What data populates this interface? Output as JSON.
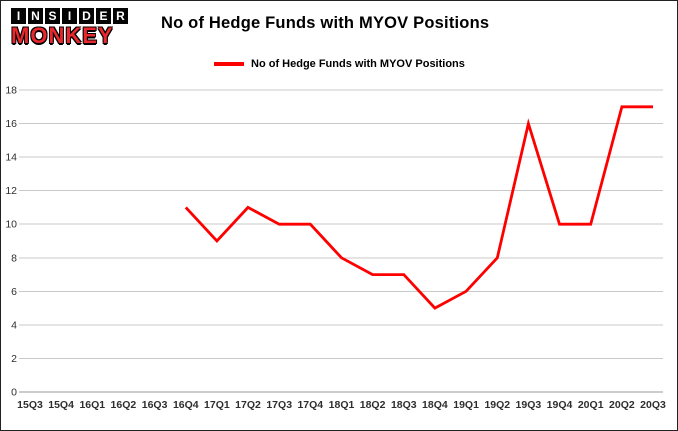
{
  "logo": {
    "line1": "INSIDER",
    "line2": "MONKEY"
  },
  "header": {
    "title": "No of Hedge Funds with MYOV Positions"
  },
  "legend": {
    "label": "No of Hedge Funds with MYOV Positions"
  },
  "chart_data": {
    "type": "line",
    "title": "No of Hedge Funds with MYOV Positions",
    "categories": [
      "15Q3",
      "15Q4",
      "16Q1",
      "16Q2",
      "16Q3",
      "16Q4",
      "17Q1",
      "17Q2",
      "17Q3",
      "17Q4",
      "18Q1",
      "18Q2",
      "18Q3",
      "18Q4",
      "19Q1",
      "19Q2",
      "19Q3",
      "19Q4",
      "20Q1",
      "20Q2",
      "20Q3"
    ],
    "series": [
      {
        "name": "No of Hedge Funds with MYOV Positions",
        "color": "#ff0000",
        "values": [
          null,
          null,
          null,
          null,
          null,
          11,
          9,
          11,
          10,
          10,
          8,
          7,
          7,
          5,
          6,
          8,
          16,
          10,
          10,
          17,
          17
        ]
      }
    ],
    "ylim": [
      0,
      18
    ],
    "y_ticks": [
      0,
      2,
      4,
      6,
      8,
      10,
      12,
      14,
      16,
      18
    ],
    "grid": true,
    "legend_position": "top",
    "xlabel": "",
    "ylabel": ""
  },
  "colors": {
    "accent_red": "#ff0000",
    "logo_red": "#e8282c",
    "grid_line": "#c9c9c9",
    "axis_line": "#999999",
    "axis_text": "#2e2e2e",
    "background": "#ffffff",
    "border": "#222222"
  }
}
